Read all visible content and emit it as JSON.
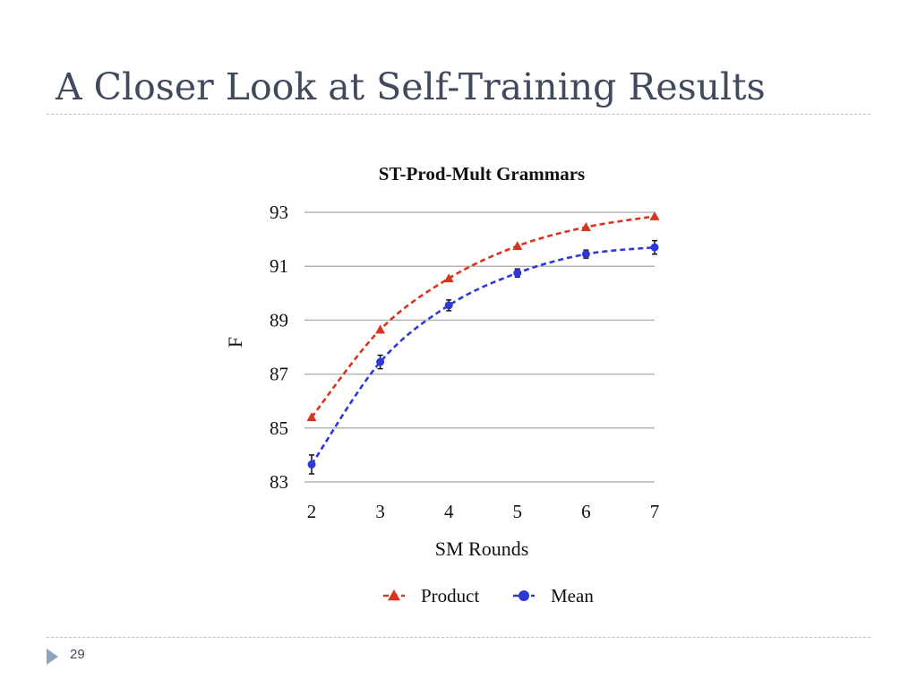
{
  "slide": {
    "title": "A Closer Look at Self-Training Results",
    "page_number": "29"
  },
  "chart_data": {
    "type": "line",
    "title": "ST-Prod-Mult Grammars",
    "xlabel": "SM Rounds",
    "ylabel": "F",
    "x": [
      2,
      3,
      4,
      5,
      6,
      7
    ],
    "xlim": [
      2,
      7
    ],
    "ylim": [
      83,
      93
    ],
    "yticks": [
      83,
      85,
      87,
      89,
      91,
      93
    ],
    "grid": "horizontal",
    "legend_position": "bottom",
    "series": [
      {
        "name": "Product",
        "color": "#d9341e",
        "marker": "triangle",
        "line_style": "dashed",
        "values": [
          85.4,
          88.65,
          90.55,
          91.75,
          92.45,
          92.85
        ]
      },
      {
        "name": "Mean",
        "color": "#2c38d8",
        "marker": "circle",
        "line_style": "dashed",
        "values": [
          83.65,
          87.45,
          89.55,
          90.75,
          91.45,
          91.7
        ],
        "error": [
          0.35,
          0.25,
          0.2,
          0.15,
          0.15,
          0.25
        ]
      }
    ]
  }
}
